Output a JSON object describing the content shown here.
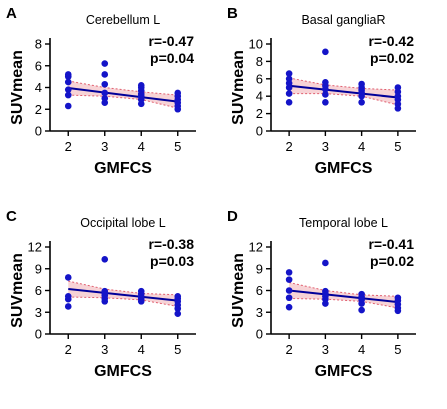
{
  "figure": {
    "x_axis_label": "GMFCS",
    "y_axis_label": "SUVmean"
  },
  "chart_data": [
    {
      "panel_letter": "A",
      "type": "scatter",
      "title": "Cerebellum L",
      "xlabel": "GMFCS",
      "ylabel": "SUVmean",
      "xlim": [
        1.5,
        5.5
      ],
      "ylim": [
        0,
        8
      ],
      "xticks": [
        2,
        3,
        4,
        5
      ],
      "yticks": [
        0,
        2,
        4,
        6,
        8
      ],
      "stats": [
        "r=-0.47",
        "p=0.04"
      ],
      "points": [
        {
          "x": 2,
          "y": 2.3
        },
        {
          "x": 2,
          "y": 3.3
        },
        {
          "x": 2,
          "y": 3.8
        },
        {
          "x": 2,
          "y": 4.5
        },
        {
          "x": 2,
          "y": 5.0
        },
        {
          "x": 2,
          "y": 5.2
        },
        {
          "x": 3,
          "y": 2.6
        },
        {
          "x": 3,
          "y": 3.0
        },
        {
          "x": 3,
          "y": 3.5
        },
        {
          "x": 3,
          "y": 4.3
        },
        {
          "x": 3,
          "y": 5.2
        },
        {
          "x": 3,
          "y": 6.2
        },
        {
          "x": 4,
          "y": 2.5
        },
        {
          "x": 4,
          "y": 2.9
        },
        {
          "x": 4,
          "y": 3.2
        },
        {
          "x": 4,
          "y": 3.4
        },
        {
          "x": 4,
          "y": 3.7
        },
        {
          "x": 4,
          "y": 4.0
        },
        {
          "x": 4,
          "y": 4.2
        },
        {
          "x": 5,
          "y": 2.0
        },
        {
          "x": 5,
          "y": 2.3
        },
        {
          "x": 5,
          "y": 2.6
        },
        {
          "x": 5,
          "y": 2.9
        },
        {
          "x": 5,
          "y": 3.2
        },
        {
          "x": 5,
          "y": 3.5
        }
      ],
      "fit": {
        "x": [
          2,
          5
        ],
        "y": [
          3.95,
          2.7
        ]
      },
      "ci_upper": {
        "x": [
          2,
          3,
          4,
          5
        ],
        "y": [
          4.6,
          4.0,
          3.6,
          3.3
        ]
      },
      "ci_lower": {
        "x": [
          2,
          3,
          4,
          5
        ],
        "y": [
          3.3,
          3.2,
          2.9,
          2.1
        ]
      },
      "colors": {
        "points": "#1414c8",
        "fit": "#000099",
        "ci_fill": "#f5c8cc",
        "ci_line": "#e06070"
      }
    },
    {
      "panel_letter": "B",
      "type": "scatter",
      "title": "Basal gangliaR",
      "xlabel": "GMFCS",
      "ylabel": "SUVmean",
      "xlim": [
        1.5,
        5.5
      ],
      "ylim": [
        0,
        10
      ],
      "xticks": [
        2,
        3,
        4,
        5
      ],
      "yticks": [
        0,
        2,
        4,
        6,
        8,
        10
      ],
      "stats": [
        "r=-0.42",
        "p=0.02"
      ],
      "points": [
        {
          "x": 2,
          "y": 3.3
        },
        {
          "x": 2,
          "y": 4.3
        },
        {
          "x": 2,
          "y": 5.0
        },
        {
          "x": 2,
          "y": 5.5
        },
        {
          "x": 2,
          "y": 6.0
        },
        {
          "x": 2,
          "y": 6.6
        },
        {
          "x": 3,
          "y": 3.3
        },
        {
          "x": 3,
          "y": 4.2
        },
        {
          "x": 3,
          "y": 4.8
        },
        {
          "x": 3,
          "y": 5.2
        },
        {
          "x": 3,
          "y": 5.6
        },
        {
          "x": 3,
          "y": 9.1
        },
        {
          "x": 4,
          "y": 3.3
        },
        {
          "x": 4,
          "y": 4.0
        },
        {
          "x": 4,
          "y": 4.4
        },
        {
          "x": 4,
          "y": 4.7
        },
        {
          "x": 4,
          "y": 5.0
        },
        {
          "x": 4,
          "y": 5.4
        },
        {
          "x": 5,
          "y": 2.6
        },
        {
          "x": 5,
          "y": 3.1
        },
        {
          "x": 5,
          "y": 3.6
        },
        {
          "x": 5,
          "y": 4.0
        },
        {
          "x": 5,
          "y": 4.5
        },
        {
          "x": 5,
          "y": 5.0
        }
      ],
      "fit": {
        "x": [
          2,
          5
        ],
        "y": [
          5.2,
          3.85
        ]
      },
      "ci_upper": {
        "x": [
          2,
          3,
          4,
          5
        ],
        "y": [
          6.1,
          5.3,
          4.9,
          4.7
        ]
      },
      "ci_lower": {
        "x": [
          2,
          3,
          4,
          5
        ],
        "y": [
          4.3,
          4.3,
          4.0,
          3.0
        ]
      },
      "colors": {
        "points": "#1414c8",
        "fit": "#000099",
        "ci_fill": "#f5c8cc",
        "ci_line": "#e06070"
      }
    },
    {
      "panel_letter": "C",
      "type": "scatter",
      "title": "Occipital lobe L",
      "xlabel": "GMFCS",
      "ylabel": "SUVmean",
      "xlim": [
        1.5,
        5.5
      ],
      "ylim": [
        0,
        12
      ],
      "xticks": [
        2,
        3,
        4,
        5
      ],
      "yticks": [
        0,
        3,
        6,
        9,
        12
      ],
      "stats": [
        "r=-0.38",
        "p=0.03"
      ],
      "points": [
        {
          "x": 2,
          "y": 3.8
        },
        {
          "x": 2,
          "y": 4.8
        },
        {
          "x": 2,
          "y": 5.2
        },
        {
          "x": 2,
          "y": 7.8
        },
        {
          "x": 3,
          "y": 4.5
        },
        {
          "x": 3,
          "y": 4.9
        },
        {
          "x": 3,
          "y": 5.3
        },
        {
          "x": 3,
          "y": 5.6
        },
        {
          "x": 3,
          "y": 5.9
        },
        {
          "x": 3,
          "y": 10.3
        },
        {
          "x": 4,
          "y": 4.5
        },
        {
          "x": 4,
          "y": 4.8
        },
        {
          "x": 4,
          "y": 5.1
        },
        {
          "x": 4,
          "y": 5.5
        },
        {
          "x": 4,
          "y": 5.9
        },
        {
          "x": 5,
          "y": 2.8
        },
        {
          "x": 5,
          "y": 3.5
        },
        {
          "x": 5,
          "y": 4.0
        },
        {
          "x": 5,
          "y": 4.5
        },
        {
          "x": 5,
          "y": 4.9
        },
        {
          "x": 5,
          "y": 5.2
        }
      ],
      "fit": {
        "x": [
          2,
          5
        ],
        "y": [
          6.2,
          4.6
        ]
      },
      "ci_upper": {
        "x": [
          2,
          3,
          4,
          5
        ],
        "y": [
          7.3,
          6.2,
          5.6,
          5.4
        ]
      },
      "ci_lower": {
        "x": [
          2,
          3,
          4,
          5
        ],
        "y": [
          5.1,
          5.0,
          4.7,
          3.8
        ]
      },
      "colors": {
        "points": "#1414c8",
        "fit": "#000099",
        "ci_fill": "#f5c8cc",
        "ci_line": "#e06070"
      }
    },
    {
      "panel_letter": "D",
      "type": "scatter",
      "title": "Temporal lobe L",
      "xlabel": "GMFCS",
      "ylabel": "SUVmean",
      "xlim": [
        1.5,
        5.5
      ],
      "ylim": [
        0,
        12
      ],
      "xticks": [
        2,
        3,
        4,
        5
      ],
      "yticks": [
        0,
        3,
        6,
        9,
        12
      ],
      "stats": [
        "r=-0.41",
        "p=0.02"
      ],
      "points": [
        {
          "x": 2,
          "y": 3.7
        },
        {
          "x": 2,
          "y": 5.0
        },
        {
          "x": 2,
          "y": 6.0
        },
        {
          "x": 2,
          "y": 7.5
        },
        {
          "x": 2,
          "y": 8.5
        },
        {
          "x": 3,
          "y": 4.2
        },
        {
          "x": 3,
          "y": 4.8
        },
        {
          "x": 3,
          "y": 5.2
        },
        {
          "x": 3,
          "y": 5.6
        },
        {
          "x": 3,
          "y": 5.9
        },
        {
          "x": 3,
          "y": 9.8
        },
        {
          "x": 4,
          "y": 3.3
        },
        {
          "x": 4,
          "y": 4.2
        },
        {
          "x": 4,
          "y": 4.7
        },
        {
          "x": 4,
          "y": 5.1
        },
        {
          "x": 4,
          "y": 5.5
        },
        {
          "x": 5,
          "y": 3.2
        },
        {
          "x": 5,
          "y": 3.6
        },
        {
          "x": 5,
          "y": 4.1
        },
        {
          "x": 5,
          "y": 4.6
        },
        {
          "x": 5,
          "y": 5.0
        }
      ],
      "fit": {
        "x": [
          2,
          5
        ],
        "y": [
          6.0,
          4.4
        ]
      },
      "ci_upper": {
        "x": [
          2,
          3,
          4,
          5
        ],
        "y": [
          7.1,
          6.0,
          5.4,
          5.2
        ]
      },
      "ci_lower": {
        "x": [
          2,
          3,
          4,
          5
        ],
        "y": [
          4.9,
          4.8,
          4.5,
          3.6
        ]
      },
      "colors": {
        "points": "#1414c8",
        "fit": "#000099",
        "ci_fill": "#f5c8cc",
        "ci_line": "#e06070"
      }
    }
  ]
}
